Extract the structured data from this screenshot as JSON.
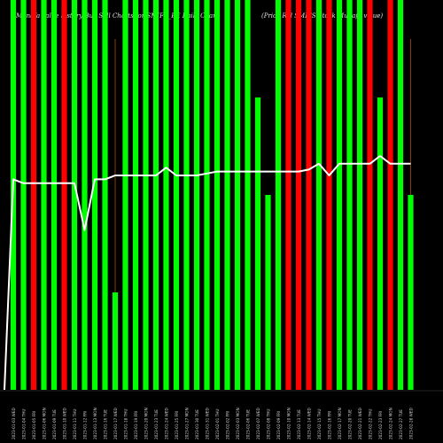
{
  "title_left": "Munafa value history Buy Sell Charts for SMIFS_BE Daily Chart",
  "title_right": "(Price Rel SMIFS Stock Munafa value)",
  "colors": {
    "background": "#000000",
    "green": "#00ff00",
    "red": "#ff0000",
    "line": "#ffffff",
    "axis": "#ffffff",
    "wick": "#8b3a00"
  },
  "chart_data": {
    "type": "bar",
    "ylim": [
      0,
      100
    ],
    "categories": [
      "2023-01-03 WED",
      "2023-01-04 THU",
      "2023-01-05 FRI",
      "2023-01-06 MON",
      "2023-01-09 TUE",
      "2023-01-10 WED",
      "2023-01-11 THU",
      "2023-01-12 FRI",
      "2023-01-13 MON",
      "2023-01-16 TUE",
      "2023-01-17 WED",
      "2023-01-18 THU",
      "2023-01-19 FRI",
      "2023-01-20 MON",
      "2023-01-23 TUE",
      "2023-01-24 WED",
      "2023-01-25 FRI",
      "2023-01-27 MON",
      "2023-01-30 TUE",
      "2023-01-31 WED",
      "2023-02-01 THU",
      "2023-02-02 FRI",
      "2023-02-03 MON",
      "2023-02-06 TUE",
      "2023-02-07 WED",
      "2023-02-08 THU",
      "2023-02-09 FRI",
      "2023-02-10 MON",
      "2023-02-13 TUE",
      "2023-02-14 WED",
      "2023-02-15 THU",
      "2023-02-16 FRI",
      "2023-02-17 MON",
      "2023-02-20 TUE",
      "2023-02-21 WED",
      "2023-02-22 THU",
      "2023-02-23 FRI",
      "2023-02-24 MON",
      "2023-02-27 TUE",
      "2023-02-28 WED"
    ],
    "series": [
      {
        "colors": [
          "green",
          "green",
          "red",
          "green",
          "green",
          "red",
          "green",
          "green",
          "green",
          "green",
          "green",
          "green",
          "green",
          "green",
          "green",
          "green",
          "green",
          "green",
          "green",
          "green",
          "green",
          "green",
          "green",
          "green",
          "green",
          "green",
          "green",
          "red",
          "red",
          "red",
          "green",
          "red",
          "green",
          "green",
          "green",
          "red",
          "green",
          "red",
          "green",
          "green"
        ],
        "values": [
          100,
          100,
          100,
          100,
          100,
          100,
          100,
          100,
          100,
          100,
          25,
          100,
          100,
          100,
          100,
          100,
          100,
          100,
          100,
          100,
          100,
          100,
          100,
          100,
          75,
          50,
          100,
          100,
          100,
          100,
          100,
          100,
          100,
          100,
          100,
          100,
          75,
          100,
          100,
          50
        ],
        "wick_top": [
          null,
          null,
          null,
          null,
          null,
          null,
          null,
          null,
          null,
          null,
          90,
          null,
          null,
          null,
          null,
          null,
          null,
          null,
          null,
          null,
          null,
          null,
          null,
          null,
          null,
          null,
          null,
          null,
          null,
          null,
          null,
          null,
          null,
          null,
          null,
          null,
          null,
          null,
          null,
          90
        ]
      },
      {
        "type": "line",
        "values": [
          54,
          53,
          53,
          53,
          53,
          53,
          53,
          41,
          54,
          54,
          55,
          55,
          55,
          55,
          55,
          57,
          55,
          55,
          55,
          55.5,
          56,
          56,
          56,
          56,
          56,
          56,
          56,
          56,
          56,
          56.5,
          58,
          55,
          58,
          58,
          58,
          58,
          60,
          58,
          58,
          58
        ]
      }
    ]
  }
}
